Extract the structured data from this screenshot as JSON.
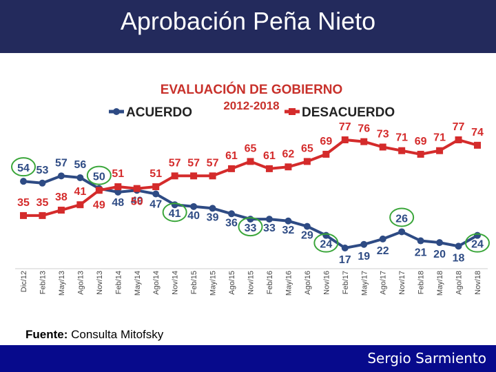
{
  "slide": {
    "title": "Aprobación Peña Nieto",
    "source_label": "Fuente:",
    "source_value": "Consulta Mitofsky",
    "author": "Sergio Sarmiento"
  },
  "colors": {
    "title_bar": "#232a5c",
    "footer_bar": "#070a8c",
    "acuerdo": "#2e4b84",
    "desacuerdo": "#d42b2b",
    "highlight": "#3aa63a"
  },
  "chart_data": {
    "type": "line",
    "title": "EVALUACIÓN DE GOBIERNO",
    "subtitle": "2012-2018",
    "categories": [
      "Dic/12",
      "Feb/13",
      "May/13",
      "Ago/13",
      "Nov/13",
      "Feb/14",
      "May/14",
      "Ago/14",
      "Nov/14",
      "Feb/15",
      "May/15",
      "Ago/15",
      "Nov/15",
      "Feb/16",
      "May/16",
      "Ago/16",
      "Nov/16",
      "Feb/17",
      "May/17",
      "Ago/17",
      "Nov/17",
      "Feb/18",
      "May/18",
      "Ago/18",
      "Nov/18"
    ],
    "series": [
      {
        "name": "ACUERDO",
        "values": [
          54,
          53,
          57,
          56,
          50,
          48,
          49,
          47,
          41,
          40,
          39,
          36,
          33,
          33,
          32,
          29,
          24,
          17,
          19,
          22,
          26,
          21,
          20,
          18,
          24
        ]
      },
      {
        "name": "DESACUERDO",
        "values": [
          35,
          35,
          38,
          41,
          49,
          51,
          50,
          51,
          57,
          57,
          57,
          61,
          65,
          61,
          62,
          65,
          69,
          77,
          76,
          73,
          71,
          69,
          71,
          77,
          74
        ]
      }
    ],
    "highlighted_points": {
      "ACUERDO": [
        0,
        4,
        8,
        12,
        16,
        20,
        24
      ]
    },
    "legend_position": "top",
    "grid": false
  }
}
